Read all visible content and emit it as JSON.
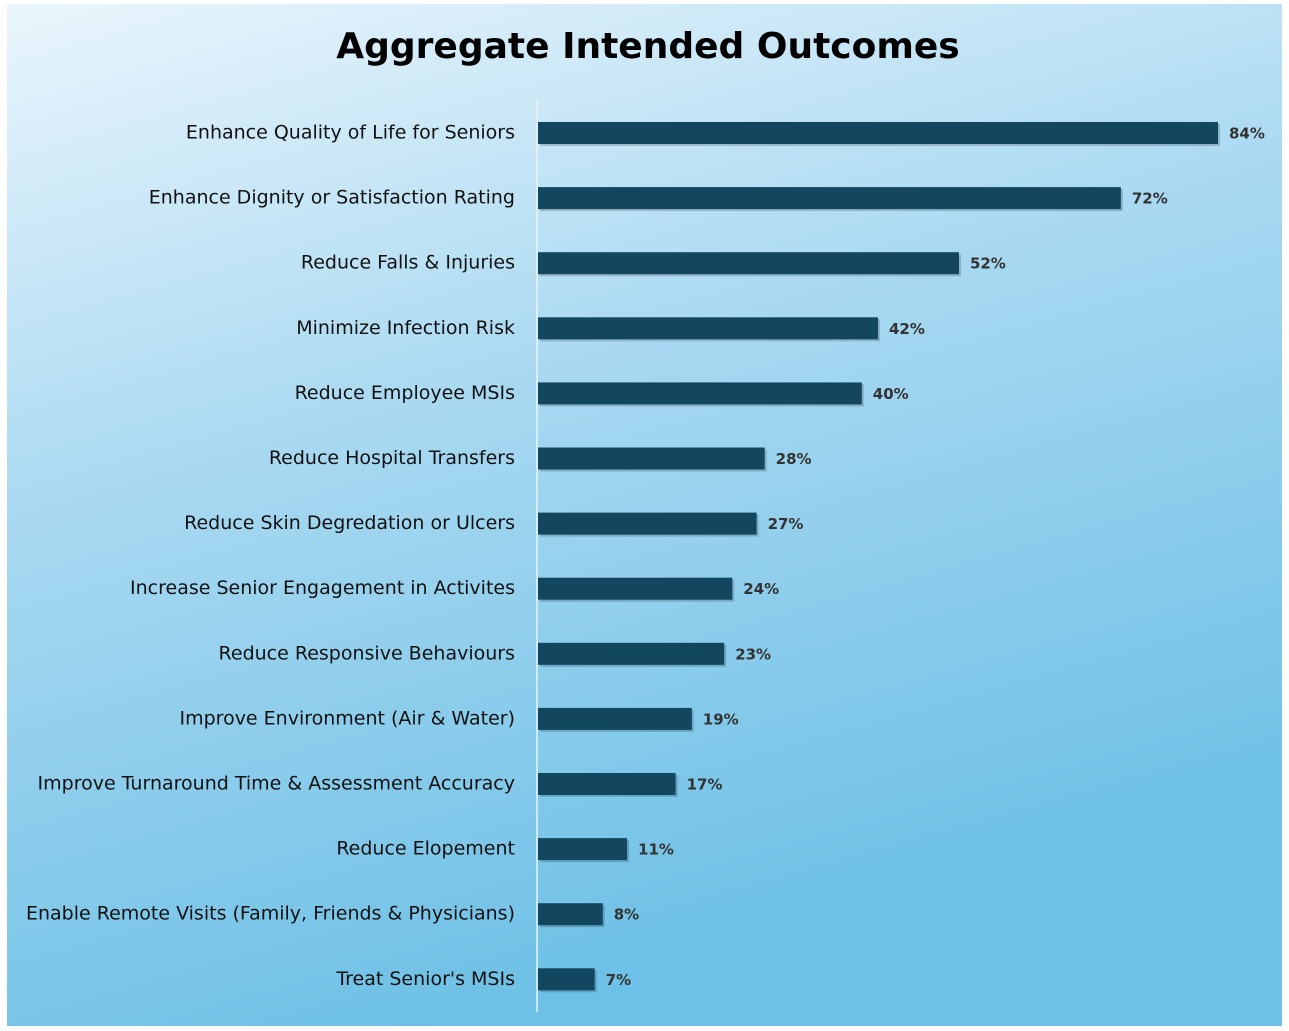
{
  "chart_data": {
    "type": "hbar",
    "title": "Aggregate Intended Outcomes",
    "categories": [
      "Enhance Quality of Life for Seniors",
      "Enhance Dignity or Satisfaction Rating",
      "Reduce Falls & Injuries",
      "Minimize Infection Risk",
      "Reduce Employee MSIs",
      "Reduce Hospital Transfers",
      "Reduce Skin Degredation or Ulcers",
      "Increase Senior Engagement in Activites",
      "Reduce Responsive Behaviours",
      "Improve Environment (Air & Water)",
      "Improve Turnaround Time & Assessment Accuracy",
      "Reduce Elopement",
      "Enable Remote Visits (Family, Friends & Physicians)",
      "Treat Senior's MSIs"
    ],
    "values": [
      84,
      72,
      52,
      42,
      40,
      28,
      27,
      24,
      23,
      19,
      17,
      11,
      8,
      7
    ],
    "value_labels": [
      "84%",
      "72%",
      "52%",
      "42%",
      "40%",
      "28%",
      "27%",
      "24%",
      "23%",
      "19%",
      "17%",
      "11%",
      "8%",
      "7%"
    ],
    "color": "#13465f"
  }
}
